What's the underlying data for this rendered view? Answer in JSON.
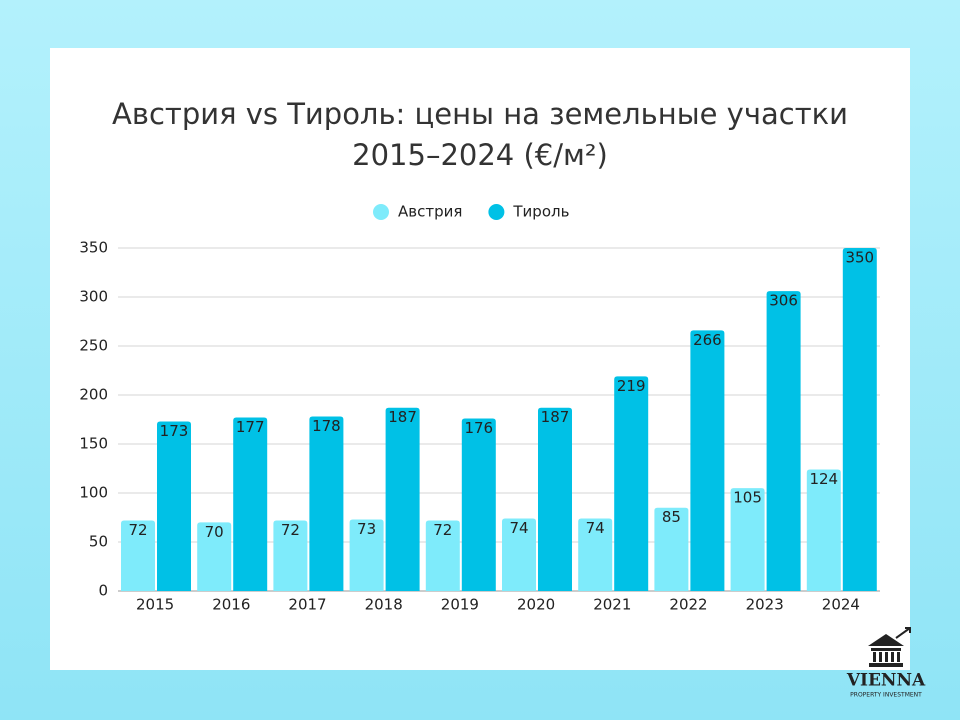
{
  "chart_data": {
    "type": "bar",
    "title": "Австрия vs Тироль: цены на земельные участки 2015–2024 (€/м²)",
    "categories": [
      "2015",
      "2016",
      "2017",
      "2018",
      "2019",
      "2020",
      "2021",
      "2022",
      "2023",
      "2024"
    ],
    "series": [
      {
        "name": "Австрия",
        "color": "#7eebfb",
        "values": [
          72,
          70,
          72,
          73,
          72,
          74,
          74,
          85,
          105,
          124
        ]
      },
      {
        "name": "Тироль",
        "color": "#00c1e6",
        "values": [
          173,
          177,
          178,
          187,
          176,
          187,
          219,
          266,
          306,
          350
        ]
      }
    ],
    "ylim": [
      0,
      350
    ],
    "yticks": [
      0,
      50,
      100,
      150,
      200,
      250,
      300,
      350
    ],
    "grid": true,
    "legend": "top"
  },
  "logo": {
    "name": "VIENNA",
    "tagline": "PROPERTY INVESTMENT"
  }
}
